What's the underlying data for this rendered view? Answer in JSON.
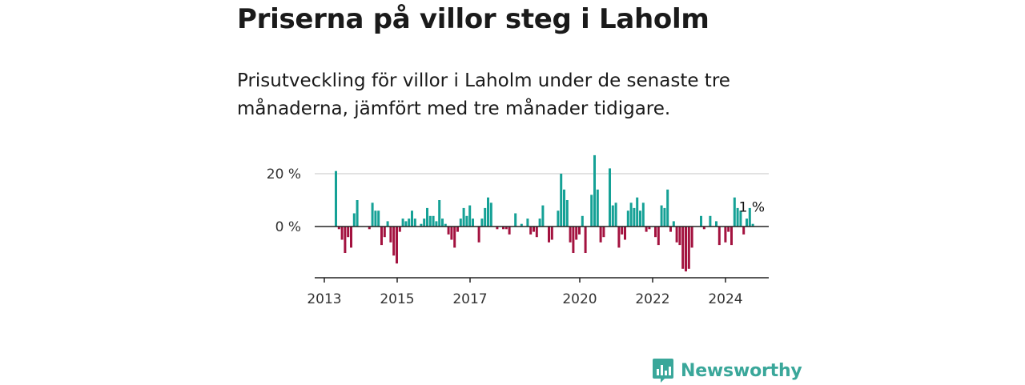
{
  "title": "Priserna på villor steg i Laholm",
  "subtitle": "Prisutveckling för villor i Laholm under de senaste tre månaderna, jämfört med tre månader tidigare.",
  "brand": {
    "name": "Newsworthy"
  },
  "colors": {
    "positive": "#15a196",
    "negative": "#a3123f",
    "gridline": "#d9d9d9",
    "axis": "#222222",
    "brand": "#3aa79a"
  },
  "chart_data": {
    "type": "bar",
    "y_unit": "%",
    "ylim": [
      -18,
      27
    ],
    "y_ticks": [
      {
        "value": 0,
        "label": "0 %"
      },
      {
        "value": 20,
        "label": "20 %"
      }
    ],
    "grid": true,
    "x_ticks": [
      "2013",
      "2015",
      "2017",
      "2020",
      "2022",
      "2024"
    ],
    "last_label": "1 %",
    "values": [
      21,
      -1,
      -5,
      -10,
      -4,
      -8,
      5,
      10,
      0,
      0,
      0,
      -1,
      9,
      6,
      6,
      -7,
      -4,
      2,
      -6,
      -11,
      -14,
      -2,
      3,
      2,
      3,
      6,
      3,
      0,
      1,
      3,
      7,
      4,
      4,
      2,
      10,
      3,
      1,
      -3,
      -5,
      -8,
      -2,
      3,
      7,
      4,
      8,
      3,
      0,
      -6,
      3,
      7,
      11,
      9,
      0,
      -1,
      0,
      -1,
      -1,
      -3,
      0,
      5,
      0,
      1,
      0,
      3,
      -3,
      -2,
      -4,
      3,
      8,
      0,
      -6,
      -5,
      0,
      6,
      20,
      14,
      10,
      -6,
      -10,
      -5,
      -3,
      4,
      -10,
      0,
      12,
      27,
      14,
      -6,
      -4,
      0,
      22,
      8,
      9,
      -8,
      -3,
      -5,
      6,
      9,
      7,
      11,
      6,
      9,
      -2,
      -1,
      0,
      -4,
      -7,
      8,
      7,
      14,
      -2,
      2,
      -6,
      -7,
      -16,
      -17,
      -16,
      -8,
      0,
      0,
      4,
      -1,
      0,
      4,
      0,
      2,
      -7,
      0,
      -6,
      -2,
      -7,
      11,
      7,
      6,
      -3,
      3,
      7,
      1
    ]
  }
}
